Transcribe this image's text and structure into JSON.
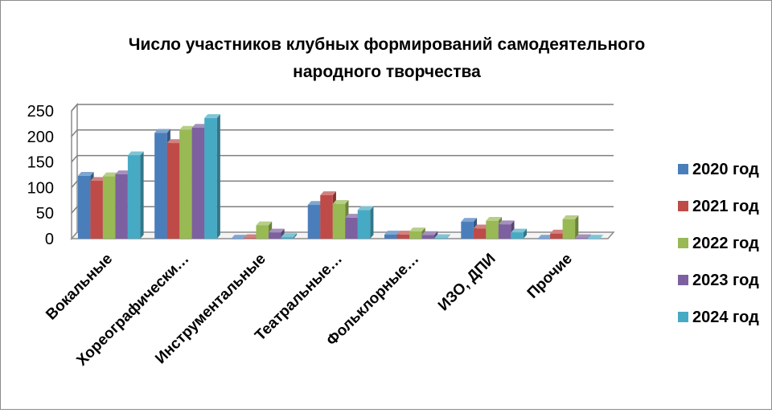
{
  "chart_data": {
    "type": "bar",
    "title_line1": "Число участников клубных формирований самодеятельного",
    "title_line2": "народного творчества",
    "categories": [
      "Вокальные",
      "Хореографически…",
      "Инструментальные",
      "Театральные…",
      "Фольклорные…",
      "ИЗО, ДПИ",
      "Прочие"
    ],
    "series": [
      {
        "name": "2020 год",
        "color": "#4a7ebb",
        "values": [
          123,
          207,
          0,
          66,
          8,
          33,
          0
        ]
      },
      {
        "name": "2021 год",
        "color": "#be4b48",
        "values": [
          113,
          187,
          1,
          85,
          8,
          20,
          10
        ]
      },
      {
        "name": "2022 год",
        "color": "#98b954",
        "values": [
          122,
          213,
          26,
          68,
          14,
          35,
          38
        ]
      },
      {
        "name": "2023 год",
        "color": "#7d60a0",
        "values": [
          126,
          217,
          12,
          41,
          7,
          28,
          1
        ]
      },
      {
        "name": "2024 год",
        "color": "#46aac5",
        "values": [
          163,
          236,
          3,
          56,
          1,
          12,
          0
        ]
      }
    ],
    "yticks": [
      "0",
      "50",
      "100",
      "150",
      "200",
      "250"
    ],
    "ylim": [
      0,
      250
    ],
    "grid": true,
    "legend_position": "right"
  }
}
